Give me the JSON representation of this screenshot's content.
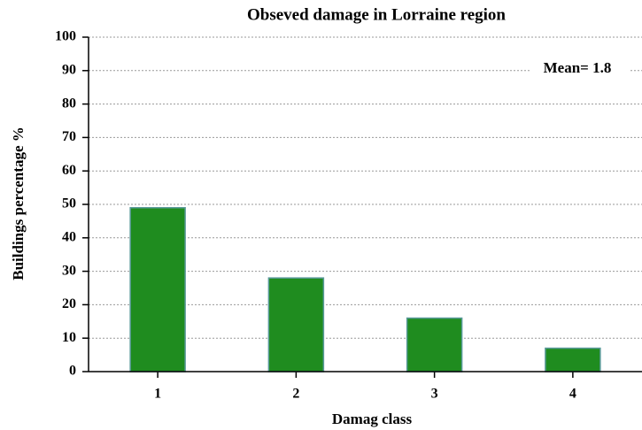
{
  "chart_data": {
    "type": "bar",
    "title": "Obseved damage in Lorraine region",
    "x_label": "Damag class",
    "y_label": "Buildings percentage %",
    "annotation": "Mean= 1.8",
    "categories": [
      "1",
      "2",
      "3",
      "4"
    ],
    "values": [
      49,
      28,
      16,
      7
    ],
    "color": "#1f8c1f",
    "ylim": [
      0,
      100
    ],
    "yticks": [
      0,
      10,
      20,
      30,
      40,
      50,
      60,
      70,
      80,
      90,
      100
    ],
    "grid": true
  }
}
